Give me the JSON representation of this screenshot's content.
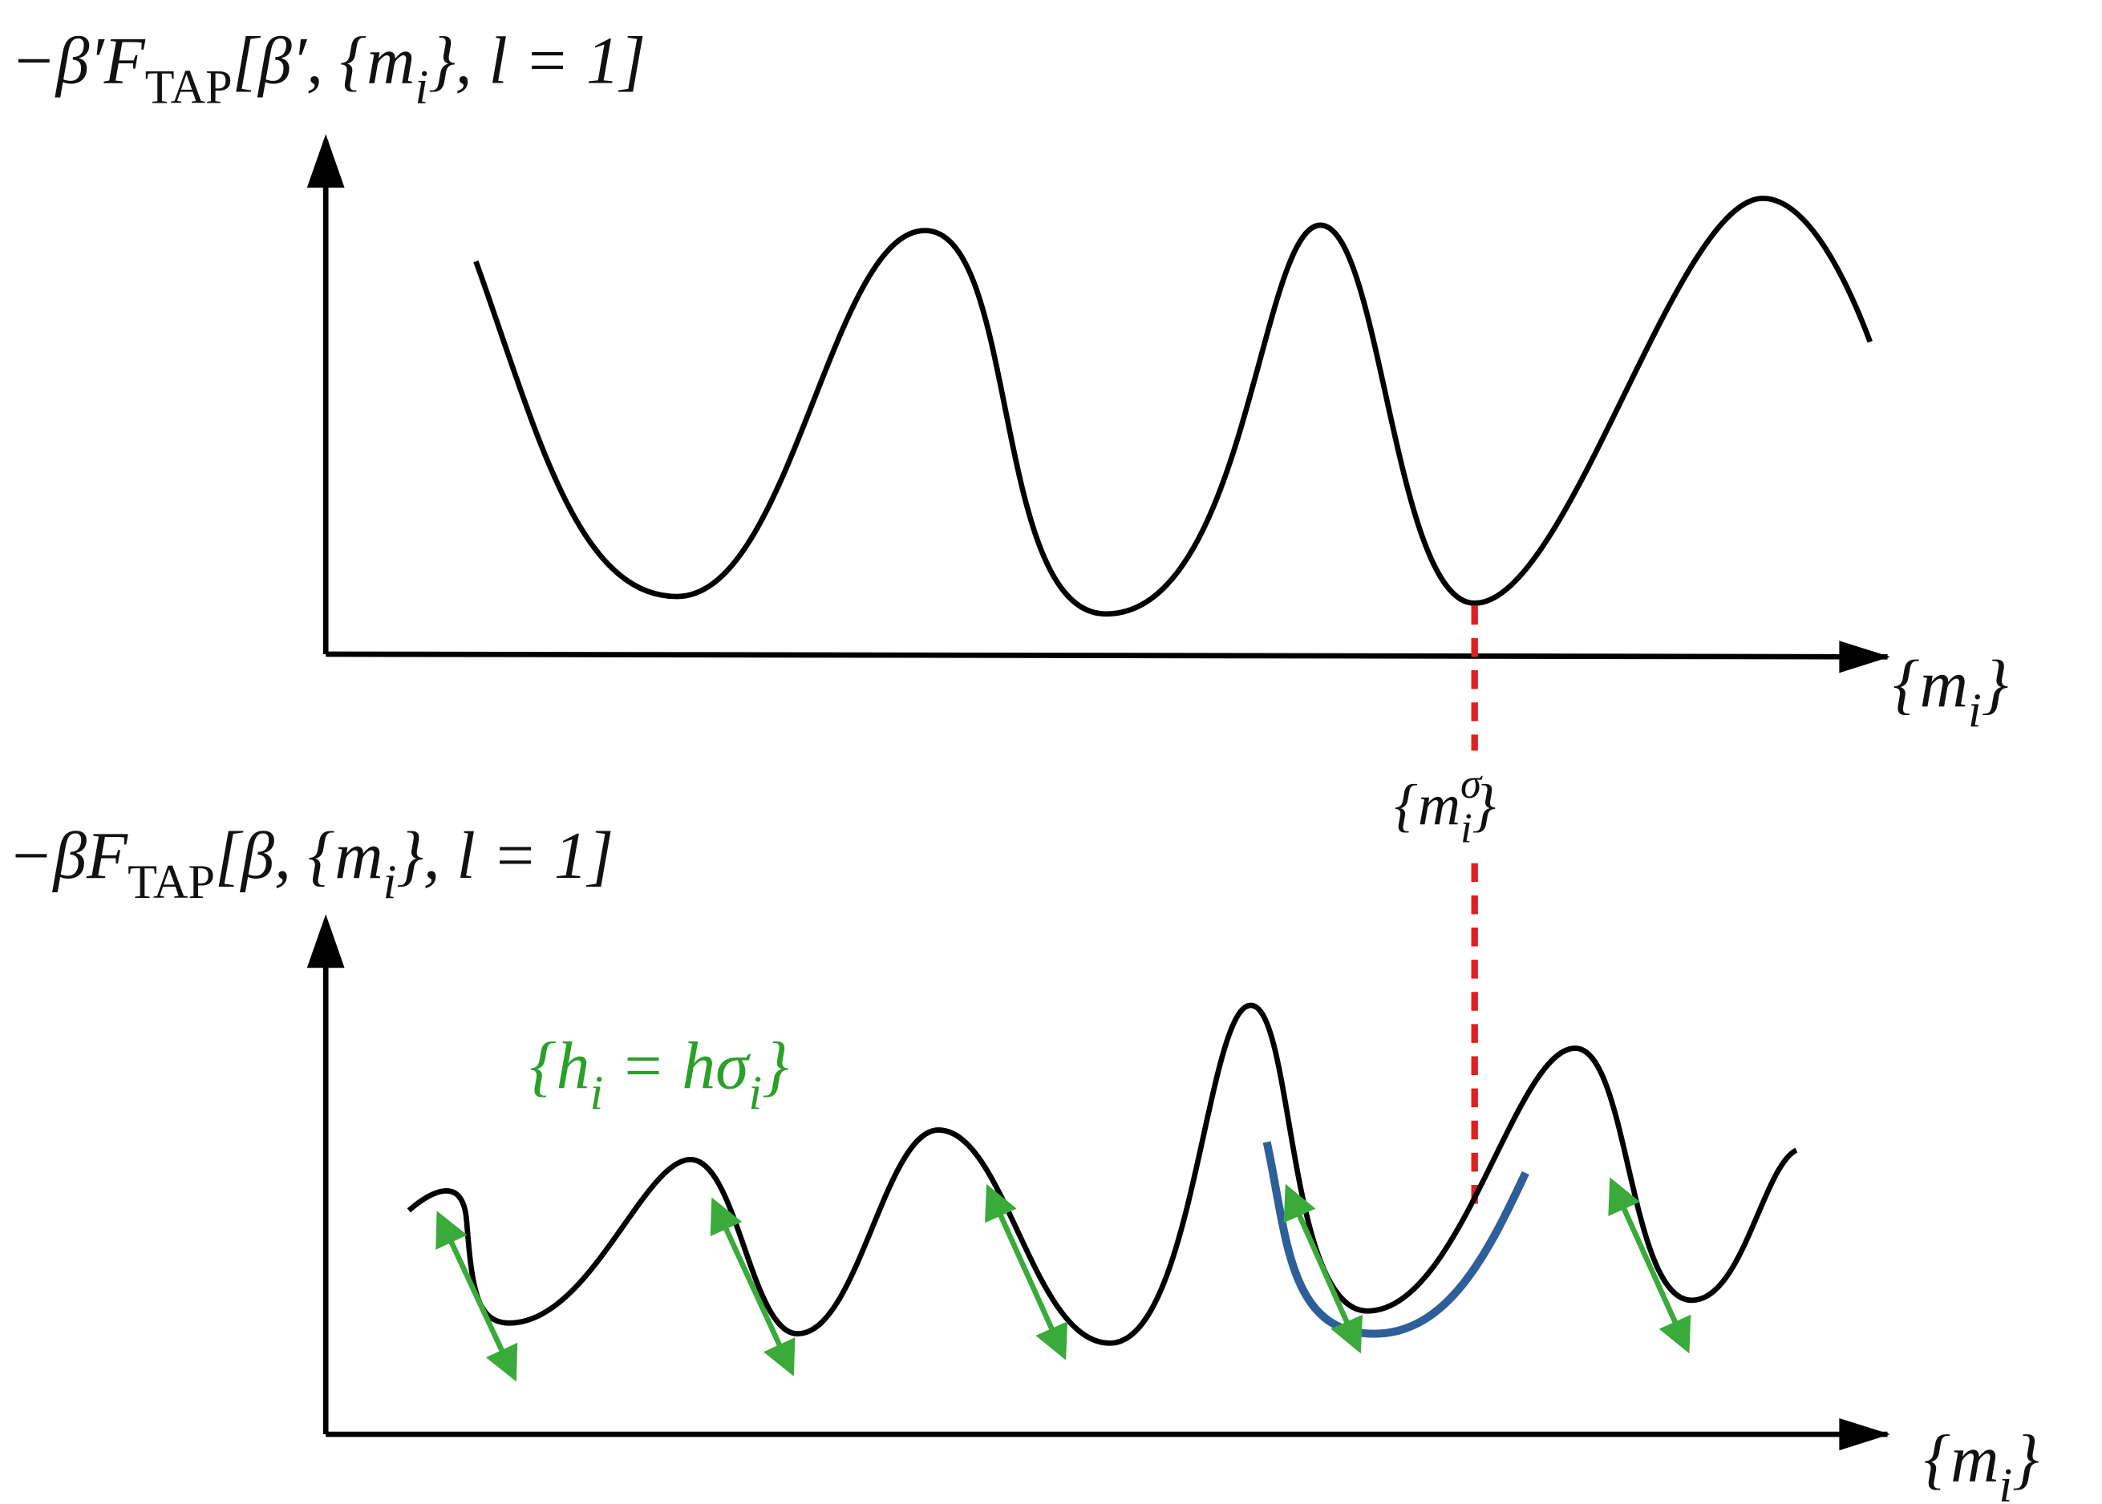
{
  "top_panel": {
    "label": [
      {
        "text": "−β′F"
      },
      {
        "sub": "TAP"
      },
      {
        "text": "[β′, {m"
      },
      {
        "sub": "i"
      },
      {
        "text": "}, l = 1]"
      }
    ],
    "x_axis_label": [
      {
        "text": "{m"
      },
      {
        "sub": "i"
      },
      {
        "text": "}"
      }
    ],
    "minimum_label": [
      {
        "text": "{m"
      },
      {
        "sup": "σ"
      },
      {
        "sub": "i"
      },
      {
        "text": "}"
      }
    ]
  },
  "bottom_panel": {
    "label": [
      {
        "text": "−βF"
      },
      {
        "sub": "TAP"
      },
      {
        "text": "[β, {m"
      },
      {
        "sub": "i"
      },
      {
        "text": "}, l = 1]"
      }
    ],
    "x_axis_label": [
      {
        "text": "{m"
      },
      {
        "sub": "i"
      },
      {
        "text": "}"
      }
    ],
    "field_label": [
      {
        "text": "{h"
      },
      {
        "sub": "i"
      },
      {
        "text": " = hσ"
      },
      {
        "sub": "i"
      },
      {
        "text": "}"
      }
    ]
  }
}
